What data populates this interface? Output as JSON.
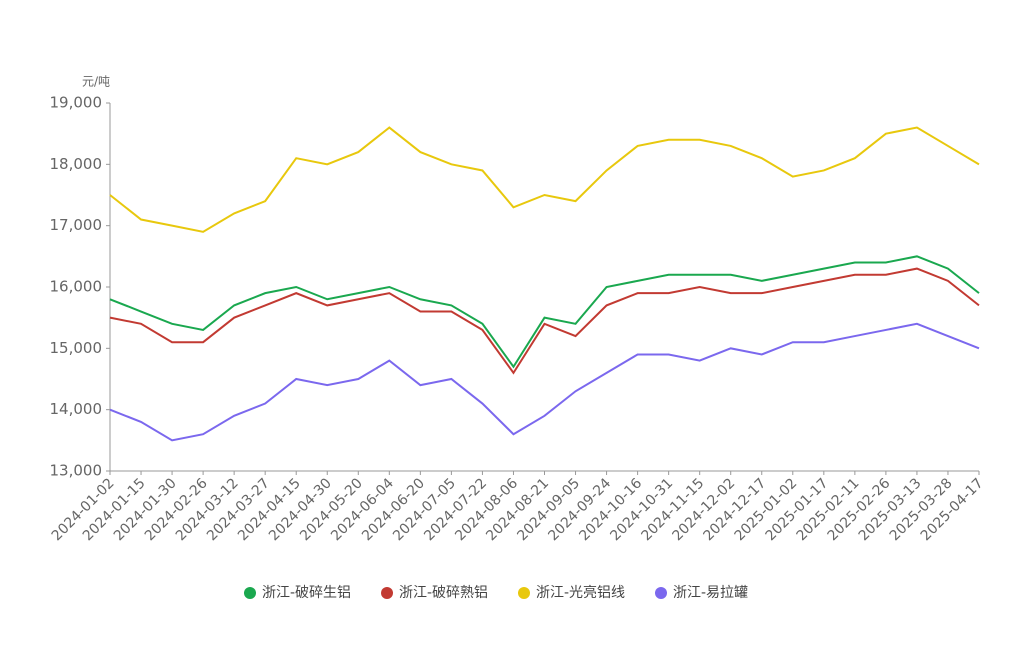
{
  "chart_data": {
    "type": "line",
    "ylabel": "元/吨",
    "categories": [
      "2024-01-02",
      "2024-01-15",
      "2024-01-30",
      "2024-02-26",
      "2024-03-12",
      "2024-03-27",
      "2024-04-15",
      "2024-04-30",
      "2024-05-20",
      "2024-06-04",
      "2024-06-20",
      "2024-07-05",
      "2024-07-22",
      "2024-08-06",
      "2024-08-21",
      "2024-09-05",
      "2024-09-24",
      "2024-10-16",
      "2024-10-31",
      "2024-11-15",
      "2024-12-02",
      "2024-12-17",
      "2025-01-02",
      "2025-01-17",
      "2025-02-11",
      "2025-02-26",
      "2025-03-13",
      "2025-03-28",
      "2025-04-17"
    ],
    "series": [
      {
        "name": "浙江-破碎生铝",
        "color": "#1aa84f",
        "values": [
          15800,
          15600,
          15400,
          15300,
          15700,
          15900,
          16000,
          15800,
          15900,
          16000,
          15800,
          15700,
          15400,
          14700,
          15500,
          15400,
          16000,
          16100,
          16200,
          16200,
          16200,
          16100,
          16200,
          16300,
          16400,
          16400,
          16500,
          16300,
          15900
        ]
      },
      {
        "name": "浙江-破碎熟铝",
        "color": "#c23a32",
        "values": [
          15500,
          15400,
          15100,
          15100,
          15500,
          15700,
          15900,
          15700,
          15800,
          15900,
          15600,
          15600,
          15300,
          14600,
          15400,
          15200,
          15700,
          15900,
          15900,
          16000,
          15900,
          15900,
          16000,
          16100,
          16200,
          16200,
          16300,
          16100,
          15700
        ]
      },
      {
        "name": "浙江-光亮铝线",
        "color": "#e8c80d",
        "values": [
          17500,
          17100,
          17000,
          16900,
          17200,
          17400,
          18100,
          18000,
          18200,
          18600,
          18200,
          18000,
          17900,
          17300,
          17500,
          17400,
          17900,
          18300,
          18400,
          18400,
          18300,
          18100,
          17800,
          17900,
          18100,
          18500,
          18600,
          18300,
          18000
        ]
      },
      {
        "name": "浙江-易拉罐",
        "color": "#7b68ee",
        "values": [
          14000,
          13800,
          13500,
          13600,
          13900,
          14100,
          14500,
          14400,
          14500,
          14800,
          14400,
          14500,
          14100,
          13600,
          13900,
          14300,
          14600,
          14900,
          14900,
          14800,
          15000,
          14900,
          15100,
          15100,
          15200,
          15300,
          15400,
          15200,
          15000
        ]
      }
    ],
    "ylim": [
      13000,
      19000
    ],
    "yticks": [
      {
        "value": 13000,
        "label": "13,000"
      },
      {
        "value": 14000,
        "label": "14,000"
      },
      {
        "value": 15000,
        "label": "15,000"
      },
      {
        "value": 16000,
        "label": "16,000"
      },
      {
        "value": 17000,
        "label": "17,000"
      },
      {
        "value": 18000,
        "label": "18,000"
      },
      {
        "value": 19000,
        "label": "19,000"
      }
    ],
    "legend": "bottom"
  }
}
